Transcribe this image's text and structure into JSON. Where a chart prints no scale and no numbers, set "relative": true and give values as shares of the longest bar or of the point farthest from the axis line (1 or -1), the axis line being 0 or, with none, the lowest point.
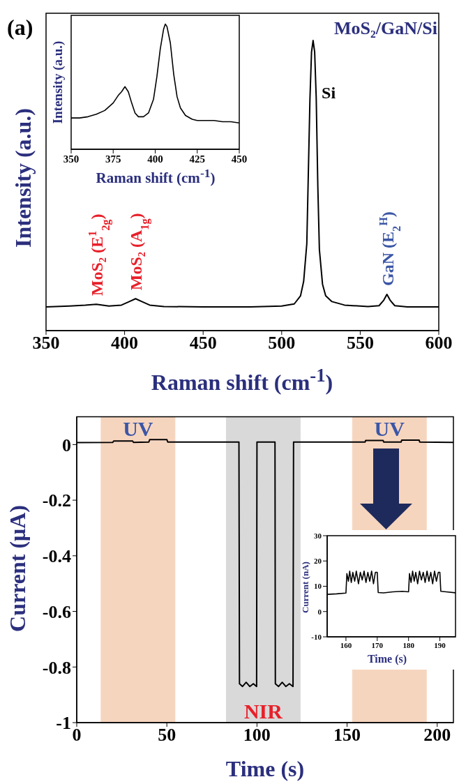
{
  "chart_data": [
    {
      "type": "line",
      "xlabel": "Raman shift (cm$^{-1}$)",
      "ylabel": "Intensity (a.u.)",
      "relative": true,
      "xlim": [
        350,
        600
      ],
      "xticks": [
        350,
        400,
        450,
        500,
        550,
        600
      ],
      "annotations": [
        "(a)",
        "MoS₂/GaN/Si",
        {
          "text": "MoS₂ (E$^{1}$$_{2g}$)",
          "x": 382,
          "y": 0.091
        },
        {
          "text": "MoS₂ (A$_{1g}$)",
          "x": 407,
          "y": 0.11
        },
        {
          "text": "Si",
          "x": 521,
          "y": 0.8
        },
        {
          "text": "GaN (E$_{2}$$^{H}$)",
          "x": 567,
          "y": 0.125
        }
      ],
      "x": [
        350,
        365,
        375,
        382,
        390,
        398,
        403,
        407,
        411,
        416,
        425,
        450,
        480,
        500,
        508,
        512,
        514,
        516,
        517,
        518,
        519,
        520,
        521,
        522,
        523,
        524,
        526,
        528,
        532,
        540,
        555,
        562,
        565,
        567,
        569,
        572,
        580,
        600
      ],
      "series": [
        {
          "color": "#000000",
          "values": [
            0.082,
            0.085,
            0.088,
            0.091,
            0.085,
            0.088,
            0.1,
            0.11,
            0.1,
            0.088,
            0.083,
            0.082,
            0.082,
            0.085,
            0.092,
            0.12,
            0.17,
            0.3,
            0.55,
            0.8,
            0.96,
            1,
            0.96,
            0.8,
            0.5,
            0.28,
            0.16,
            0.12,
            0.1,
            0.088,
            0.083,
            0.086,
            0.105,
            0.125,
            0.105,
            0.086,
            0.082,
            0.082
          ]
        }
      ]
    },
    {
      "type": "line",
      "xlabel": "Raman shift (cm$^{-1}$)",
      "ylabel": "Intensity (a.u.)",
      "relative": true,
      "xlim": [
        350,
        450
      ],
      "xticks": [
        350,
        375,
        400,
        425,
        450
      ],
      "x": [
        350,
        355,
        360,
        365,
        370,
        375,
        378,
        380,
        382,
        384,
        386,
        388,
        390,
        393,
        396,
        399,
        401,
        403,
        405,
        406,
        407,
        409,
        411,
        413,
        415,
        418,
        422,
        425,
        430,
        435,
        440,
        445,
        450
      ],
      "series": [
        {
          "color": "#000000",
          "values": [
            0.25,
            0.25,
            0.26,
            0.28,
            0.31,
            0.37,
            0.43,
            0.46,
            0.5,
            0.46,
            0.37,
            0.29,
            0.26,
            0.26,
            0.29,
            0.4,
            0.58,
            0.8,
            0.96,
            1,
            0.98,
            0.85,
            0.6,
            0.42,
            0.33,
            0.27,
            0.24,
            0.23,
            0.23,
            0.23,
            0.22,
            0.22,
            0.21
          ]
        }
      ]
    },
    {
      "type": "line",
      "xlabel": "Time (s)",
      "ylabel": "Current (μA)",
      "xlim": [
        0,
        209
      ],
      "xticks": [
        0,
        50,
        100,
        150,
        200
      ],
      "ylim": [
        -1,
        0.1
      ],
      "yticks": [
        0,
        -0.2,
        -0.4,
        -0.6,
        -0.8,
        -1
      ],
      "bands": [
        {
          "axis": "x",
          "from": 13.5,
          "to": 54.5,
          "label": "UV",
          "color": "#f6d5bf"
        },
        {
          "axis": "x",
          "from": 83,
          "to": 124,
          "label": "NIR",
          "color": "#d9d9d9"
        },
        {
          "axis": "x",
          "from": 153,
          "to": 194,
          "label": "UV",
          "color": "#f6d5bf"
        }
      ],
      "x": [
        0,
        20,
        20.5,
        31,
        31.5,
        40,
        40.5,
        50,
        50.5,
        90,
        90.3,
        92,
        94,
        96,
        98,
        99.8,
        100,
        110,
        110.2,
        112,
        114,
        116,
        118,
        120,
        120.3,
        160,
        160.3,
        170,
        170.3,
        180,
        180.3,
        190,
        190.3,
        209
      ],
      "series": [
        {
          "color": "#000000",
          "values": [
            0.007,
            0.008,
            0.013,
            0.013,
            0.008,
            0.009,
            0.018,
            0.018,
            0.009,
            0.009,
            -0.86,
            -0.87,
            -0.855,
            -0.87,
            -0.86,
            -0.87,
            0.009,
            0.009,
            -0.86,
            -0.87,
            -0.855,
            -0.87,
            -0.86,
            -0.87,
            0.009,
            0.009,
            0.015,
            0.015,
            0.009,
            0.009,
            0.016,
            0.016,
            0.009,
            0.008
          ]
        }
      ]
    },
    {
      "type": "line",
      "xlabel": "Time (s)",
      "ylabel": "Current (nA)",
      "xlim": [
        154,
        195
      ],
      "xticks": [
        160,
        170,
        180,
        190
      ],
      "ylim": [
        -10,
        30
      ],
      "yticks": [
        -10,
        0,
        10,
        20,
        30
      ],
      "x": [
        154,
        157,
        160,
        160.3,
        160.8,
        161.2,
        161.7,
        162.2,
        162.8,
        163.3,
        164,
        164.6,
        165.2,
        165.8,
        166.4,
        167,
        167.6,
        168.2,
        168.8,
        169.4,
        170,
        170.3,
        172,
        175,
        178,
        180,
        180.3,
        180.8,
        181.3,
        181.8,
        182.3,
        182.9,
        183.5,
        184.1,
        184.7,
        185.3,
        185.9,
        186.5,
        187.1,
        187.7,
        188.3,
        188.9,
        189.5,
        190,
        190.3,
        192,
        195
      ],
      "series": [
        {
          "color": "#000000",
          "values": [
            6.8,
            7,
            7.3,
            15,
            12,
            16,
            11.5,
            15.5,
            12,
            16,
            11,
            15.5,
            12.5,
            16,
            11.5,
            15.5,
            12,
            16,
            11,
            15.5,
            15.5,
            7.5,
            7.4,
            7.8,
            8,
            7.8,
            15,
            11.5,
            16,
            12,
            15.5,
            11,
            16,
            12.5,
            15.5,
            11.5,
            16,
            12,
            15.5,
            11,
            16,
            12,
            15.5,
            15.5,
            8,
            7.8,
            7.4
          ]
        }
      ]
    }
  ]
}
